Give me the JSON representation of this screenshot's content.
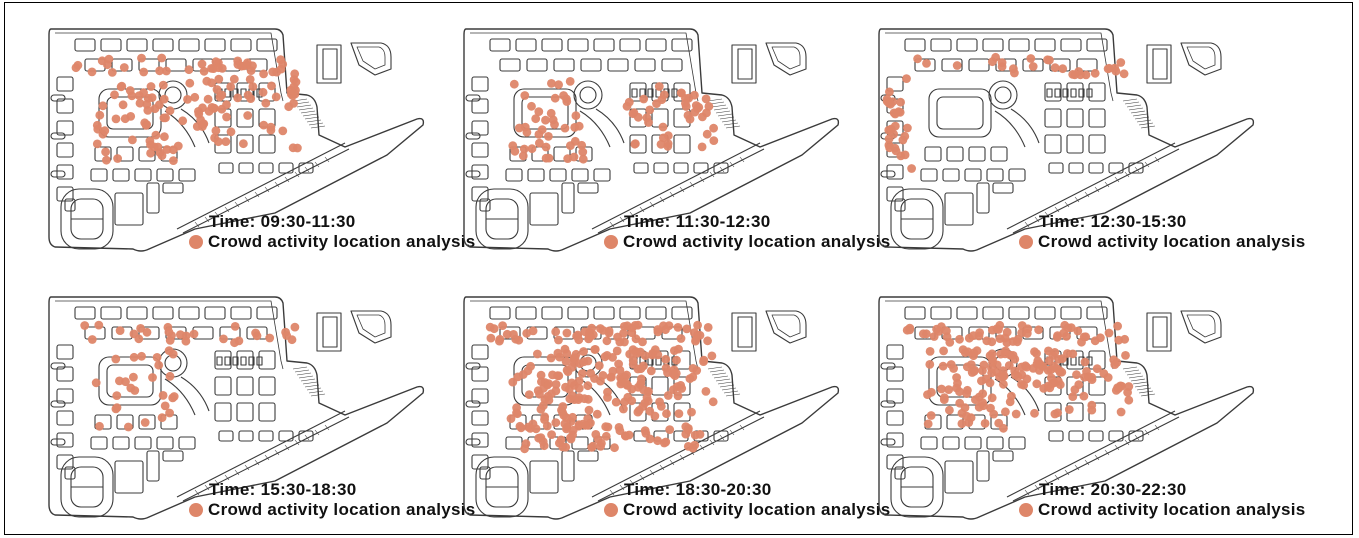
{
  "legend_label": "Crowd activity location analysis",
  "point_color": "#de8669",
  "map_line_color": "#3b3b3b",
  "panels": [
    {
      "time_prefix": "Time: ",
      "time_range": "09:30-11:30",
      "density": "medium",
      "hotspots": [
        "west-plaza",
        "central-block",
        "north-row",
        "east-block"
      ]
    },
    {
      "time_prefix": "Time: ",
      "time_range": "11:30-12:30",
      "density": "low-medium",
      "hotspots": [
        "west-plaza",
        "east-block"
      ]
    },
    {
      "time_prefix": "Time: ",
      "time_range": "12:30-15:30",
      "density": "low",
      "hotspots": [
        "north-row",
        "west-edge"
      ]
    },
    {
      "time_prefix": "Time: ",
      "time_range": "15:30-18:30",
      "density": "low",
      "hotspots": [
        "north-row",
        "west-plaza"
      ]
    },
    {
      "time_prefix": "Time: ",
      "time_range": "18:30-20:30",
      "density": "high",
      "hotspots": [
        "west-plaza",
        "central-block",
        "north-row",
        "east-block",
        "south-row"
      ]
    },
    {
      "time_prefix": "Time: ",
      "time_range": "20:30-22:30",
      "density": "medium-high",
      "hotspots": [
        "west-plaza",
        "central-block",
        "north-row",
        "east-block"
      ]
    }
  ]
}
